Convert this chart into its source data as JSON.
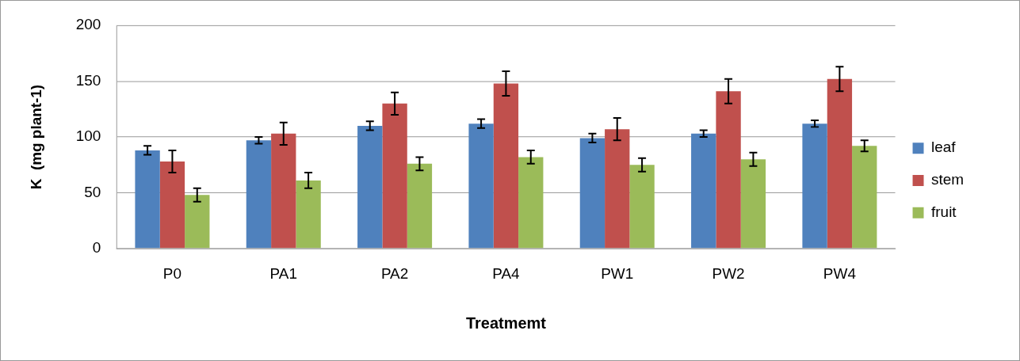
{
  "chart_data": {
    "type": "bar",
    "xlabel": "Treatmemt",
    "ylabel": "K  (mg plant-1)",
    "categories": [
      "P0",
      "PA1",
      "PA2",
      "PA4",
      "PW1",
      "PW2",
      "PW4"
    ],
    "series": [
      {
        "name": "leaf",
        "color": "#4f81bd",
        "values": [
          88,
          97,
          110,
          112,
          99,
          103,
          112
        ],
        "errors": [
          4,
          3,
          4,
          4,
          4,
          3,
          3
        ]
      },
      {
        "name": "stem",
        "color": "#c0504d",
        "values": [
          78,
          103,
          130,
          148,
          107,
          141,
          152
        ],
        "errors": [
          10,
          10,
          10,
          11,
          10,
          11,
          11
        ]
      },
      {
        "name": "fruit",
        "color": "#9bbb59",
        "values": [
          48,
          61,
          76,
          82,
          75,
          80,
          92
        ],
        "errors": [
          6,
          7,
          6,
          6,
          6,
          6,
          5
        ]
      }
    ],
    "ylim": [
      0,
      200
    ],
    "yticks": [
      0,
      50,
      100,
      150,
      200
    ],
    "grid": "y",
    "legend": "right"
  }
}
